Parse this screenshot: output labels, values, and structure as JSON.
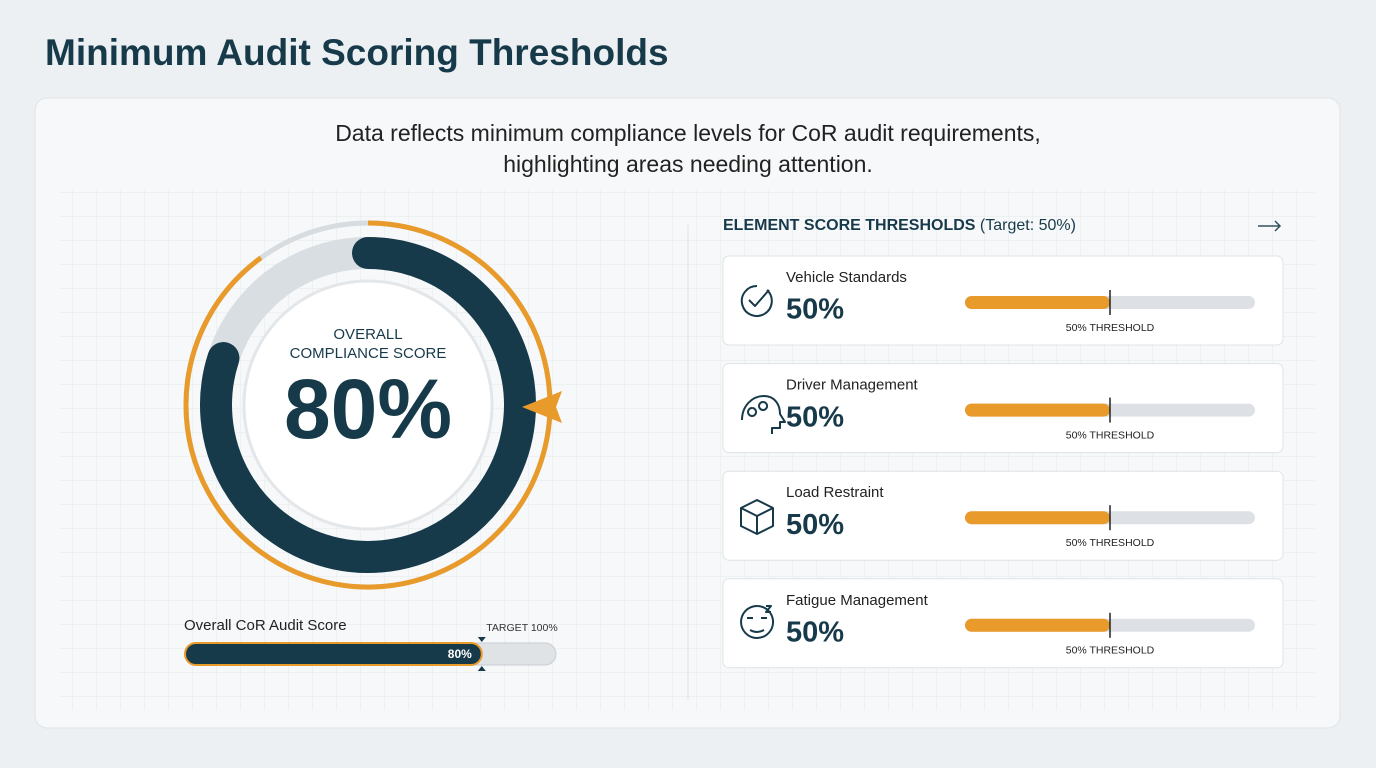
{
  "title": "Minimum Audit Scoring Thresholds",
  "subtitle": "Data reflects minimum compliance levels for CoR audit requirements, highlighting areas needing attention.",
  "gauge": {
    "label": "OVERALL COMPLIANCE SCORE",
    "value": 80,
    "value_label": "80%"
  },
  "audit_bar": {
    "label": "Overall CoR Audit Score",
    "value": 80,
    "value_label": "80%",
    "target": 100,
    "target_label": "TARGET 100%"
  },
  "elements": {
    "heading": "ELEMENT SCORE THRESHOLDS",
    "target_text": "(Target: 50%)",
    "items": [
      {
        "name": "Vehicle Standards",
        "value": 50,
        "value_label": "50%",
        "threshold": 50,
        "threshold_label": "50% THRESHOLD"
      },
      {
        "name": "Driver Management",
        "value": 50,
        "value_label": "50%",
        "threshold": 50,
        "threshold_label": "50% THRESHOLD"
      },
      {
        "name": "Load Restraint",
        "value": 50,
        "value_label": "50%",
        "threshold": 50,
        "threshold_label": "50% THRESHOLD"
      },
      {
        "name": "Fatigue Management",
        "value": 50,
        "value_label": "50%",
        "threshold": 50,
        "threshold_label": "50% THRESHOLD"
      }
    ]
  }
}
